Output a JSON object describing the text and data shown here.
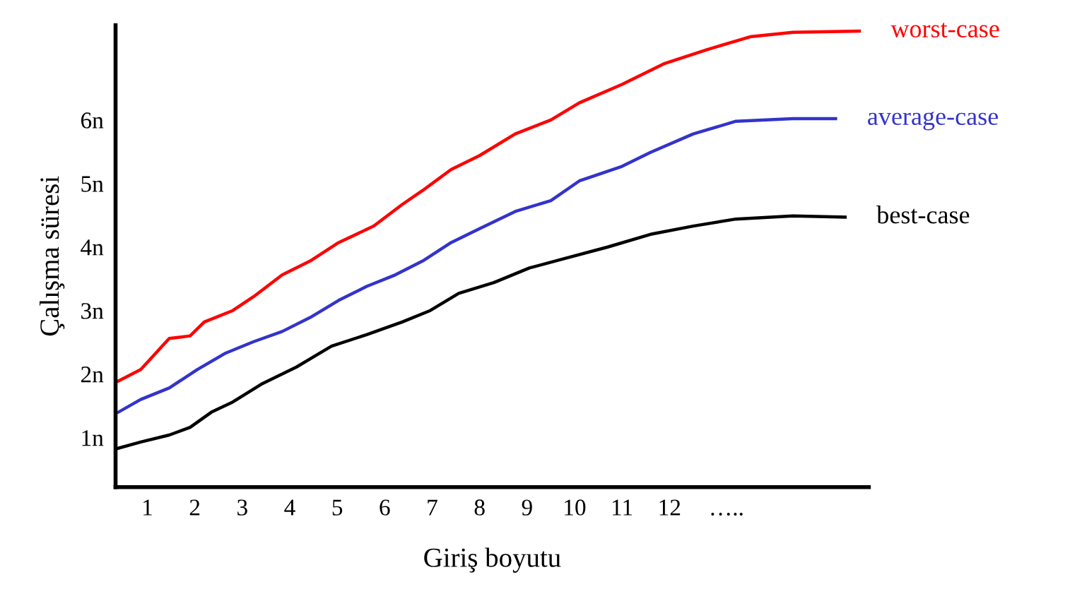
{
  "chart_data": {
    "type": "line",
    "xlabel": "Giriş boyutu",
    "ylabel": "Çalışma süresi",
    "xlim": [
      0.33,
      16.2
    ],
    "ylim": [
      0.22,
      7.49
    ],
    "xticks": [
      1,
      2,
      3,
      4,
      5,
      6,
      7,
      8,
      9,
      10,
      11,
      12,
      {
        "value": 13.2,
        "label": "….."
      }
    ],
    "yticks": [
      {
        "value": 1,
        "label": "1n"
      },
      {
        "value": 2,
        "label": "2n"
      },
      {
        "value": 3,
        "label": "3n"
      },
      {
        "value": 4,
        "label": "4n"
      },
      {
        "value": 5,
        "label": "5n"
      },
      {
        "value": 6,
        "label": "6n"
      }
    ],
    "grid": false,
    "legend": false,
    "marker": "none",
    "line_style": "solid",
    "series": [
      {
        "name": "worst-case",
        "color": "#ff0000",
        "x": [
          0.39,
          0.86,
          1.46,
          1.9,
          2.2,
          2.8,
          3.24,
          3.84,
          4.43,
          5.03,
          5.77,
          6.37,
          6.8,
          7.4,
          8.0,
          8.75,
          9.5,
          10.1,
          11.0,
          11.9,
          12.8,
          13.7,
          14.6,
          16.0
        ],
        "values": [
          1.89,
          2.07,
          2.56,
          2.6,
          2.82,
          3.0,
          3.22,
          3.56,
          3.78,
          4.07,
          4.33,
          4.67,
          4.89,
          5.22,
          5.44,
          5.78,
          6.0,
          6.27,
          6.56,
          6.89,
          7.11,
          7.31,
          7.38,
          7.4
        ]
      },
      {
        "name": "average-case",
        "color": "#3333cc",
        "x": [
          0.39,
          0.86,
          1.46,
          2.05,
          2.65,
          3.24,
          3.84,
          4.43,
          5.03,
          5.62,
          6.22,
          6.8,
          7.4,
          8.0,
          8.75,
          9.5,
          10.1,
          11.0,
          11.6,
          12.5,
          13.4,
          14.6,
          15.5
        ],
        "values": [
          1.4,
          1.6,
          1.78,
          2.07,
          2.33,
          2.51,
          2.67,
          2.89,
          3.16,
          3.38,
          3.56,
          3.78,
          4.07,
          4.29,
          4.56,
          4.73,
          5.04,
          5.27,
          5.49,
          5.78,
          5.98,
          6.02,
          6.02
        ]
      },
      {
        "name": "best-case",
        "color": "#000000",
        "x": [
          0.33,
          0.86,
          1.46,
          1.9,
          2.35,
          2.8,
          3.4,
          4.14,
          4.88,
          5.62,
          6.37,
          6.96,
          7.56,
          8.3,
          9.05,
          9.8,
          10.7,
          11.6,
          12.5,
          13.4,
          14.6,
          15.7
        ],
        "values": [
          0.82,
          0.93,
          1.04,
          1.16,
          1.4,
          1.56,
          1.84,
          2.11,
          2.44,
          2.62,
          2.82,
          3.0,
          3.27,
          3.44,
          3.67,
          3.82,
          4.0,
          4.2,
          4.33,
          4.44,
          4.49,
          4.47
        ]
      }
    ]
  }
}
